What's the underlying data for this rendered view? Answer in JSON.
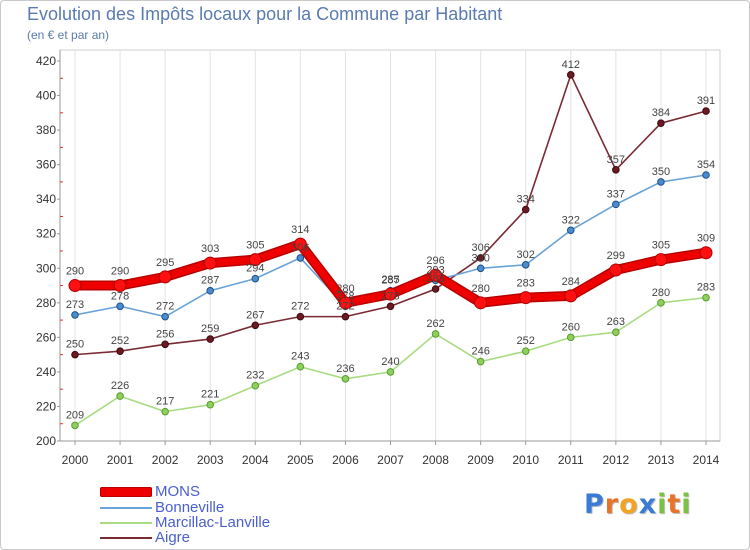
{
  "chart_data": {
    "type": "line",
    "title": "Evolution des Impôts locaux pour la Commune par Habitant",
    "subtitle": "(en € et par an)",
    "xlabel": "",
    "ylabel": "",
    "categories": [
      "2000",
      "2001",
      "2002",
      "2003",
      "2004",
      "2005",
      "2006",
      "2007",
      "2008",
      "2009",
      "2010",
      "2011",
      "2012",
      "2013",
      "2014"
    ],
    "ylim": [
      200,
      420
    ],
    "yticks": [
      200,
      220,
      240,
      260,
      280,
      300,
      320,
      340,
      360,
      380,
      400,
      420
    ],
    "grid": "vertical",
    "legend_position": "bottom-left",
    "series": [
      {
        "name": "MONS",
        "color": "#ee0000",
        "marker_color": "#ff1010",
        "marker_stroke": "#b00000",
        "values": [
          290,
          290,
          295,
          303,
          305,
          314,
          280,
          285,
          296,
          280,
          283,
          284,
          299,
          305,
          309
        ]
      },
      {
        "name": "Bonneville",
        "color": "#6aa3d8",
        "marker_color": "#4a8cd0",
        "marker_stroke": "#1f4f86",
        "values": [
          273,
          278,
          272,
          287,
          294,
          306,
          278,
          287,
          293,
          300,
          302,
          322,
          337,
          350,
          354
        ]
      },
      {
        "name": "Marcillac-Lanville",
        "color": "#a9dc82",
        "marker_color": "#8fd05c",
        "marker_stroke": "#5a9a30",
        "values": [
          209,
          226,
          217,
          221,
          232,
          243,
          236,
          240,
          262,
          246,
          252,
          260,
          263,
          280,
          283
        ]
      },
      {
        "name": "Aigre",
        "color": "#7a2a32",
        "marker_color": "#6b1a22",
        "marker_stroke": "#3e0a10",
        "values": [
          250,
          252,
          256,
          259,
          267,
          272,
          272,
          278,
          288,
          306,
          334,
          412,
          357,
          384,
          391
        ]
      }
    ]
  },
  "logo": {
    "text": "Proxiti",
    "letter_colors": [
      "#3a7bd5",
      "#e8742a",
      "#f2a321",
      "#3a7bd5",
      "#7cc242",
      "#e8742a",
      "#7cc242"
    ]
  }
}
